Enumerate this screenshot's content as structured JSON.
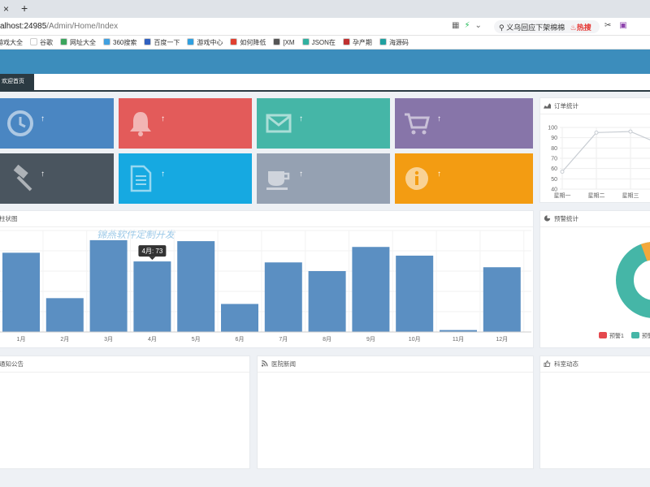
{
  "browser": {
    "url_host": "alhost:24985",
    "url_path": "/Admin/Home/Index",
    "search_text": "义乌回应下架棉棉",
    "search_hot": "热搜",
    "bookmarks": [
      "游戏大全",
      "谷歌",
      "网址大全",
      "360搜索",
      "百度一下",
      "游戏中心",
      "如何降低",
      "[XM",
      "JSON在",
      "孕产期",
      "海源码"
    ]
  },
  "app": {
    "tab_home": "欢迎首页",
    "tiles": [
      {
        "icon": "clock-icon",
        "color": "#4a86c2",
        "arrow": "↑"
      },
      {
        "icon": "bell-icon",
        "color": "#e35b5a",
        "arrow": "↑"
      },
      {
        "icon": "envelope-icon",
        "color": "#45b6a7",
        "arrow": "↑"
      },
      {
        "icon": "cart-icon",
        "color": "#8775a9",
        "arrow": "↑"
      },
      {
        "icon": "gavel-icon",
        "color": "#4a555f",
        "arrow": "↑"
      },
      {
        "icon": "document-icon",
        "color": "#16a9e1",
        "arrow": "↑"
      },
      {
        "icon": "coffee-icon",
        "color": "#95a1b2",
        "arrow": "↑"
      },
      {
        "icon": "info-icon",
        "color": "#f39c12",
        "arrow": "↑"
      }
    ],
    "order_panel_title": "订单统计",
    "bar_panel_title": "柱状图",
    "watermark": "锦燕软件定制开发",
    "donut_panel_title": "预警统计",
    "notice_panel_title": "通知公告",
    "news_panel_title": "医院新闻",
    "activity_panel_title": "科室动态"
  },
  "chart_data": [
    {
      "type": "line",
      "title": "订单统计",
      "x": [
        "星期一",
        "星期二",
        "星期三"
      ],
      "values": [
        57,
        95,
        96
      ],
      "ylim": [
        40,
        100
      ],
      "yticks": [
        40,
        50,
        60,
        70,
        80,
        90,
        100
      ],
      "color": "#c7ccd2"
    },
    {
      "type": "bar",
      "title": "柱状图",
      "categories": [
        "1月",
        "2月",
        "3月",
        "4月",
        "5月",
        "6月",
        "7月",
        "8月",
        "9月",
        "10月",
        "11月",
        "12月"
      ],
      "values": [
        82,
        35,
        95,
        73,
        94,
        29,
        72,
        63,
        88,
        79,
        2,
        67
      ],
      "ylim": [
        0,
        105
      ],
      "tooltip": "4月: 73",
      "color": "#5b8fc2"
    },
    {
      "type": "pie",
      "title": "预警统计",
      "legend": [
        "预警1",
        "预警"
      ],
      "colors": [
        "#e5494e",
        "#45b6a7",
        "#f3a83b"
      ]
    }
  ]
}
